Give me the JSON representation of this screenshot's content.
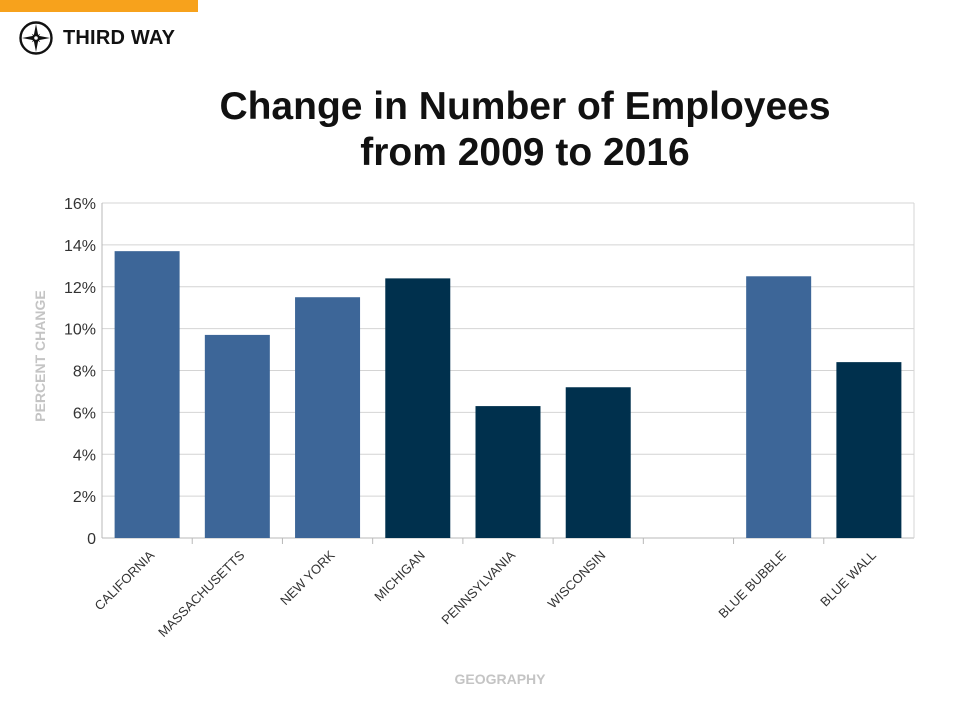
{
  "brand": {
    "name": "THIRD WAY",
    "icon": "compass-star-icon",
    "accent_color": "#f7a21c"
  },
  "title_lines": [
    "Change in Number of Employees",
    "from 2009 to 2016"
  ],
  "chart_data": {
    "type": "bar",
    "title": "Change in Number of Employees from 2009 to 2016",
    "xlabel": "GEOGRAPHY",
    "ylabel": "PERCENT CHANGE",
    "ylim": [
      0,
      16
    ],
    "yticks": [
      0,
      2,
      4,
      6,
      8,
      10,
      12,
      14,
      16
    ],
    "ytick_labels": [
      "0",
      "2%",
      "4%",
      "6%",
      "8%",
      "10%",
      "12%",
      "14%",
      "16%"
    ],
    "grid": true,
    "categories": [
      "CALIFORNIA",
      "MASSACHUSETTS",
      "NEW YORK",
      "MICHIGAN",
      "PENNSYLVANIA",
      "WISCONSIN",
      "",
      "BLUE BUBBLE",
      "BLUE WALL"
    ],
    "values": [
      13.7,
      9.7,
      11.5,
      12.4,
      6.3,
      7.2,
      null,
      12.5,
      8.4
    ],
    "bar_colors": [
      "#3d6698",
      "#3d6698",
      "#3d6698",
      "#00304d",
      "#00304d",
      "#00304d",
      null,
      "#3d6698",
      "#00304d"
    ]
  }
}
